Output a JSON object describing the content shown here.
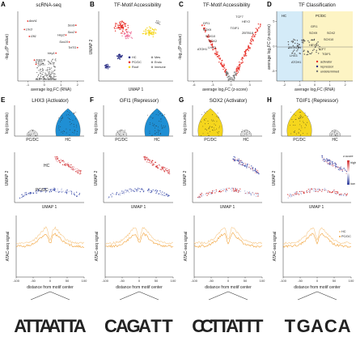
{
  "panels": [
    {
      "letter": "A",
      "title": "scRNA-seq"
    },
    {
      "letter": "B",
      "title": "TF-Motif Accessibility"
    },
    {
      "letter": "C",
      "title": "TF-Motif Accessibility"
    },
    {
      "letter": "D",
      "title": "TF Classification"
    },
    {
      "letter": "E",
      "title": "LHX3 (Activator)"
    },
    {
      "letter": "F",
      "title": "GFI1 (Repressor)"
    },
    {
      "letter": "G",
      "title": "SOX2 (Activator)"
    },
    {
      "letter": "H",
      "title": "TGIF1 (Repressor)"
    }
  ],
  "colors": {
    "red": "#e8312a",
    "blue": "#1f8fd4",
    "yellow": "#f5d61d",
    "orange": "#f2a33a",
    "navy": "#2b2f86",
    "pink": "#f07aa0",
    "grey": "#9a9a9a"
  },
  "chart_data": [
    {
      "type": "scatter",
      "panel": "A",
      "xlabel": "average log₂FC (RNA)",
      "ylabel": "-log₁₀(P value)",
      "x_ticks": [
        "-1",
        "0",
        "1",
        "2"
      ],
      "labeled_genes": [
        {
          "name": "Atoh1",
          "x": -1.0,
          "y": 0.86
        },
        {
          "name": "Lhx3",
          "x": -1.2,
          "y": 0.74
        },
        {
          "name": "Gfi1",
          "x": -0.9,
          "y": 0.64
        },
        {
          "name": "Zeb1/8",
          "x": -0.6,
          "y": 0.3
        },
        {
          "name": "Tgif1",
          "x": -0.5,
          "y": 0.24
        },
        {
          "name": "Sox9",
          "x": 1.9,
          "y": 0.8
        },
        {
          "name": "Sox2",
          "x": 1.9,
          "y": 0.7
        },
        {
          "name": "Hey2",
          "x": 1.3,
          "y": 0.66
        },
        {
          "name": "Sox10",
          "x": 1.5,
          "y": 0.56
        },
        {
          "name": "Tcf7l1",
          "x": 2.0,
          "y": 0.48
        },
        {
          "name": "Hey1",
          "x": 0.7,
          "y": 0.4
        }
      ]
    },
    {
      "type": "scatter",
      "panel": "B",
      "xlabel": "UMAP 1",
      "ylabel": "UMAP 2",
      "legend": [
        "HC",
        "PC/DC",
        "Roof",
        "Mes",
        "Endo",
        "Immune"
      ]
    },
    {
      "type": "scatter",
      "panel": "C",
      "xlabel": "average log₂FC (z-score)",
      "ylabel": "-log₁₀(P value)",
      "x_ticks": [
        "-6",
        "-3",
        "0",
        "3"
      ],
      "labeled_genes": [
        "GFI1",
        "SOX9",
        "SOX10",
        "SOX2",
        "LHX3",
        "ATOH1",
        "TCF7",
        "TGIF1",
        "HEY2",
        "ZBTB18"
      ]
    },
    {
      "type": "scatter",
      "panel": "D",
      "xlabel": "average log₂FC (RNA)",
      "ylabel": "average log₂FC (z-score)",
      "quadrants": [
        "HC",
        "PC/DC"
      ],
      "x_ticks": [
        "-2",
        "-1",
        "0",
        "1",
        "2"
      ],
      "y_ticks": [
        "-5",
        "0",
        "5"
      ],
      "labeled_genes": [
        "GFI1",
        "SOX9",
        "SOX2",
        "SOX10",
        "HEY2",
        "ZBTB18",
        "TCF7",
        "TGIF1",
        "LHX3",
        "ATOH1"
      ],
      "legend": [
        "activator",
        "repressor",
        "undetermined"
      ]
    },
    {
      "type": "violin",
      "panel": "E",
      "ylabel": "log (counts)",
      "categories": [
        "PC/DC",
        "HC"
      ],
      "winner": "HC",
      "color": "#1f8fd4"
    },
    {
      "type": "violin",
      "panel": "F",
      "ylabel": "log (counts)",
      "categories": [
        "PC/DC",
        "HC"
      ],
      "winner": "HC",
      "color": "#1f8fd4"
    },
    {
      "type": "violin",
      "panel": "G",
      "ylabel": "log (counts)",
      "categories": [
        "PC/DC",
        "HC"
      ],
      "winner": "PC/DC",
      "color": "#f5d61d"
    },
    {
      "type": "violin",
      "panel": "H",
      "ylabel": "log (counts)",
      "categories": [
        "PC/DC",
        "HC"
      ],
      "winner": "PC/DC",
      "color": "#f5d61d"
    },
    {
      "type": "scatter",
      "panels": [
        "E",
        "F",
        "G",
        "H"
      ],
      "xlabel": "UMAP 1",
      "ylabel": "UMAP 2",
      "group_labels": [
        "HC",
        "PC/DC"
      ],
      "colorbar": {
        "title": "z-score",
        "high": "high",
        "low": "low"
      }
    },
    {
      "type": "line",
      "panels": [
        "E",
        "F",
        "G",
        "H"
      ],
      "ylabel": "ATAC-seq signal",
      "xlabel": "distance from motif center",
      "x_ticks": [
        "-100",
        "-50",
        "0",
        "50",
        "100"
      ],
      "legend": [
        "HC",
        "PC/DC"
      ]
    }
  ],
  "motifs": [
    "ATTAATTA",
    "CAGATT",
    "CCTTATTT",
    "TGACA"
  ]
}
